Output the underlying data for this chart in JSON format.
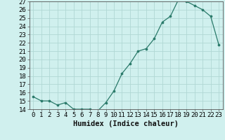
{
  "x": [
    0,
    1,
    2,
    3,
    4,
    5,
    6,
    7,
    8,
    9,
    10,
    11,
    12,
    13,
    14,
    15,
    16,
    17,
    18,
    19,
    20,
    21,
    22,
    23
  ],
  "y": [
    15.5,
    15.0,
    15.0,
    14.5,
    14.8,
    14.0,
    14.0,
    14.0,
    13.8,
    14.8,
    16.2,
    18.3,
    19.5,
    21.0,
    21.3,
    22.5,
    24.5,
    25.2,
    27.2,
    27.0,
    26.5,
    26.0,
    25.2,
    21.8
  ],
  "line_color": "#2a7a6a",
  "marker_color": "#2a7a6a",
  "bg_color": "#d0f0ee",
  "grid_color": "#b0d8d4",
  "xlabel": "Humidex (Indice chaleur)",
  "ylim_min": 14,
  "ylim_max": 27,
  "xlim_min": -0.5,
  "xlim_max": 23.5,
  "yticks": [
    14,
    15,
    16,
    17,
    18,
    19,
    20,
    21,
    22,
    23,
    24,
    25,
    26,
    27
  ],
  "xticks": [
    0,
    1,
    2,
    3,
    4,
    5,
    6,
    7,
    8,
    9,
    10,
    11,
    12,
    13,
    14,
    15,
    16,
    17,
    18,
    19,
    20,
    21,
    22,
    23
  ],
  "xtick_labels": [
    "0",
    "1",
    "2",
    "3",
    "4",
    "5",
    "6",
    "7",
    "8",
    "9",
    "10",
    "11",
    "12",
    "13",
    "14",
    "15",
    "16",
    "17",
    "18",
    "19",
    "20",
    "21",
    "22",
    "23"
  ],
  "xlabel_fontsize": 7.5,
  "tick_fontsize": 6.5,
  "spine_color": "#555555"
}
